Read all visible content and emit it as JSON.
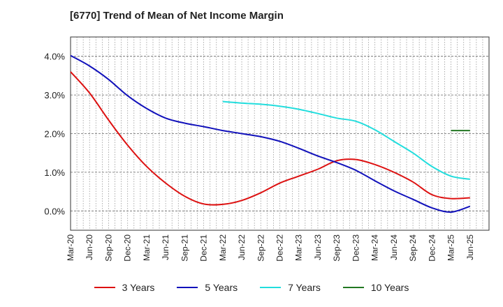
{
  "title": "[6770]  Trend of Mean of Net Income Margin",
  "chart_data": {
    "type": "line",
    "title": "[6770]  Trend of Mean of Net Income Margin",
    "xlabel": "",
    "ylabel": "",
    "categories": [
      "Mar-20",
      "Jun-20",
      "Sep-20",
      "Dec-20",
      "Mar-21",
      "Jun-21",
      "Sep-21",
      "Dec-21",
      "Mar-22",
      "Jun-22",
      "Sep-22",
      "Dec-22",
      "Mar-23",
      "Jun-23",
      "Sep-23",
      "Dec-23",
      "Mar-24",
      "Jun-24",
      "Sep-24",
      "Dec-24",
      "Mar-25",
      "Jun-25"
    ],
    "y_ticks": [
      "0.0%",
      "1.0%",
      "2.0%",
      "3.0%",
      "4.0%"
    ],
    "ylim": [
      -0.5,
      4.5
    ],
    "grid": true,
    "legend_position": "bottom",
    "series": [
      {
        "name": "3 Years",
        "color": "#dd1111",
        "values": [
          3.6,
          3.05,
          2.35,
          1.7,
          1.15,
          0.72,
          0.38,
          0.18,
          0.17,
          0.27,
          0.47,
          0.72,
          0.9,
          1.08,
          1.3,
          1.33,
          1.2,
          1.0,
          0.75,
          0.42,
          0.32,
          0.34
        ]
      },
      {
        "name": "5 Years",
        "color": "#1111bb",
        "values": [
          4.02,
          3.75,
          3.4,
          2.98,
          2.65,
          2.4,
          2.27,
          2.18,
          2.08,
          2.0,
          1.92,
          1.8,
          1.62,
          1.42,
          1.25,
          1.05,
          0.78,
          0.52,
          0.3,
          0.08,
          -0.03,
          0.12
        ]
      },
      {
        "name": "7 Years",
        "color": "#22dddd",
        "values": [
          null,
          null,
          null,
          null,
          null,
          null,
          null,
          null,
          2.83,
          2.79,
          2.76,
          2.71,
          2.63,
          2.52,
          2.4,
          2.32,
          2.1,
          1.8,
          1.5,
          1.15,
          0.9,
          0.82
        ]
      },
      {
        "name": "10 Years",
        "color": "#227722",
        "values": [
          null,
          null,
          null,
          null,
          null,
          null,
          null,
          null,
          null,
          null,
          null,
          null,
          null,
          null,
          null,
          null,
          null,
          null,
          null,
          null,
          2.08,
          2.08
        ]
      }
    ]
  }
}
